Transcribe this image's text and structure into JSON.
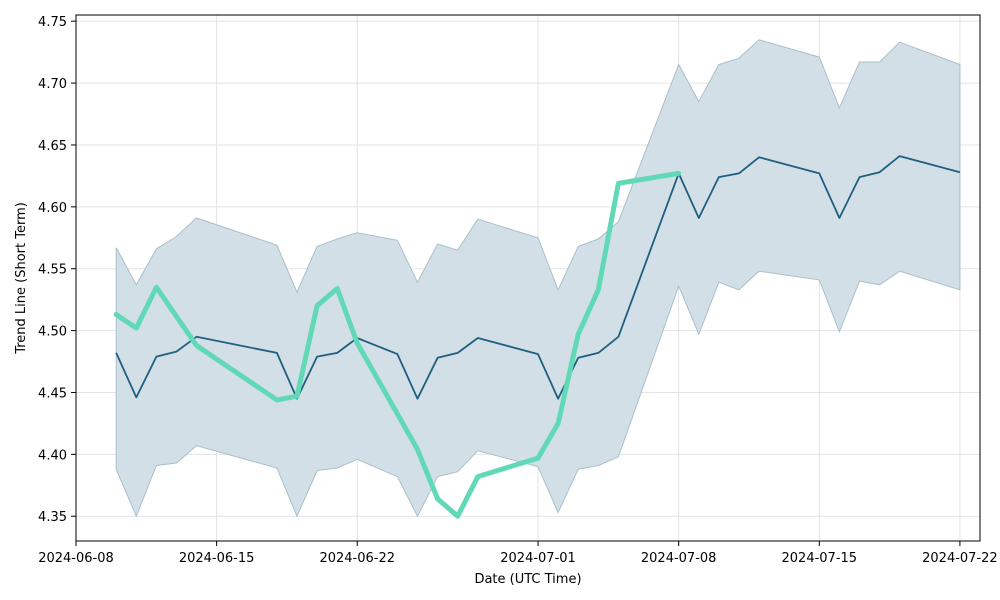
{
  "chart_data": {
    "type": "line",
    "title": "",
    "xlabel": "Date (UTC Time)",
    "ylabel": "Trend Line (Short Term)",
    "ylim": [
      4.33,
      4.755
    ],
    "xlim": [
      "2024-06-08",
      "2024-07-23"
    ],
    "grid": true,
    "x_ticks": [
      "2024-06-08",
      "2024-06-15",
      "2024-06-22",
      "2024-07-01",
      "2024-07-08",
      "2024-07-15",
      "2024-07-22"
    ],
    "y_ticks": [
      "4.35",
      "4.40",
      "4.45",
      "4.50",
      "4.55",
      "4.60",
      "4.65",
      "4.70",
      "4.75"
    ],
    "colors": {
      "trend": "#1f5f80",
      "band": "#d2dfe6",
      "band_edge": "#a9c0cc",
      "actual": "#62d9b6",
      "grid": "#e3e3e3"
    },
    "series": [
      {
        "name": "trend",
        "points": [
          [
            "2024-06-10",
            4.482
          ],
          [
            "2024-06-11",
            4.446
          ],
          [
            "2024-06-12",
            4.479
          ],
          [
            "2024-06-13",
            4.483
          ],
          [
            "2024-06-14",
            4.495
          ],
          [
            "2024-06-18",
            4.482
          ],
          [
            "2024-06-19",
            4.445
          ],
          [
            "2024-06-20",
            4.479
          ],
          [
            "2024-06-21",
            4.482
          ],
          [
            "2024-06-22",
            4.494
          ],
          [
            "2024-06-24",
            4.481
          ],
          [
            "2024-06-25",
            4.445
          ],
          [
            "2024-06-26",
            4.478
          ],
          [
            "2024-06-27",
            4.482
          ],
          [
            "2024-06-28",
            4.494
          ],
          [
            "2024-07-01",
            4.481
          ],
          [
            "2024-07-02",
            4.445
          ],
          [
            "2024-07-03",
            4.478
          ],
          [
            "2024-07-04",
            4.482
          ],
          [
            "2024-07-05",
            4.495
          ],
          [
            "2024-07-08",
            4.627
          ],
          [
            "2024-07-09",
            4.591
          ],
          [
            "2024-07-10",
            4.624
          ],
          [
            "2024-07-11",
            4.627
          ],
          [
            "2024-07-12",
            4.64
          ],
          [
            "2024-07-15",
            4.627
          ],
          [
            "2024-07-16",
            4.591
          ],
          [
            "2024-07-17",
            4.624
          ],
          [
            "2024-07-18",
            4.628
          ],
          [
            "2024-07-19",
            4.641
          ],
          [
            "2024-07-22",
            4.628
          ]
        ]
      },
      {
        "name": "upper",
        "points": [
          [
            "2024-06-10",
            4.567
          ],
          [
            "2024-06-11",
            4.537
          ],
          [
            "2024-06-12",
            4.566
          ],
          [
            "2024-06-13",
            4.576
          ],
          [
            "2024-06-14",
            4.591
          ],
          [
            "2024-06-18",
            4.569
          ],
          [
            "2024-06-19",
            4.531
          ],
          [
            "2024-06-20",
            4.568
          ],
          [
            "2024-06-21",
            4.574
          ],
          [
            "2024-06-22",
            4.579
          ],
          [
            "2024-06-24",
            4.573
          ],
          [
            "2024-06-25",
            4.539
          ],
          [
            "2024-06-26",
            4.57
          ],
          [
            "2024-06-27",
            4.565
          ],
          [
            "2024-06-28",
            4.59
          ],
          [
            "2024-07-01",
            4.575
          ],
          [
            "2024-07-02",
            4.533
          ],
          [
            "2024-07-03",
            4.568
          ],
          [
            "2024-07-04",
            4.574
          ],
          [
            "2024-07-05",
            4.588
          ],
          [
            "2024-07-08",
            4.715
          ],
          [
            "2024-07-09",
            4.685
          ],
          [
            "2024-07-10",
            4.715
          ],
          [
            "2024-07-11",
            4.72
          ],
          [
            "2024-07-12",
            4.735
          ],
          [
            "2024-07-15",
            4.721
          ],
          [
            "2024-07-16",
            4.68
          ],
          [
            "2024-07-17",
            4.717
          ],
          [
            "2024-07-18",
            4.717
          ],
          [
            "2024-07-19",
            4.733
          ],
          [
            "2024-07-22",
            4.715
          ]
        ]
      },
      {
        "name": "lower",
        "points": [
          [
            "2024-06-10",
            4.388
          ],
          [
            "2024-06-11",
            4.35
          ],
          [
            "2024-06-12",
            4.391
          ],
          [
            "2024-06-13",
            4.393
          ],
          [
            "2024-06-14",
            4.407
          ],
          [
            "2024-06-18",
            4.389
          ],
          [
            "2024-06-19",
            4.35
          ],
          [
            "2024-06-20",
            4.387
          ],
          [
            "2024-06-21",
            4.389
          ],
          [
            "2024-06-22",
            4.396
          ],
          [
            "2024-06-24",
            4.382
          ],
          [
            "2024-06-25",
            4.35
          ],
          [
            "2024-06-26",
            4.382
          ],
          [
            "2024-06-27",
            4.386
          ],
          [
            "2024-06-28",
            4.403
          ],
          [
            "2024-07-01",
            4.39
          ],
          [
            "2024-07-02",
            4.353
          ],
          [
            "2024-07-03",
            4.388
          ],
          [
            "2024-07-04",
            4.391
          ],
          [
            "2024-07-05",
            4.398
          ],
          [
            "2024-07-08",
            4.536
          ],
          [
            "2024-07-09",
            4.497
          ],
          [
            "2024-07-10",
            4.539
          ],
          [
            "2024-07-11",
            4.533
          ],
          [
            "2024-07-12",
            4.548
          ],
          [
            "2024-07-15",
            4.541
          ],
          [
            "2024-07-16",
            4.499
          ],
          [
            "2024-07-17",
            4.54
          ],
          [
            "2024-07-18",
            4.537
          ],
          [
            "2024-07-19",
            4.548
          ],
          [
            "2024-07-22",
            4.533
          ]
        ]
      },
      {
        "name": "actual",
        "points": [
          [
            "2024-06-10",
            4.513
          ],
          [
            "2024-06-11",
            4.502
          ],
          [
            "2024-06-12",
            4.535
          ],
          [
            "2024-06-14",
            4.488
          ],
          [
            "2024-06-18",
            4.444
          ],
          [
            "2024-06-19",
            4.447
          ],
          [
            "2024-06-20",
            4.52
          ],
          [
            "2024-06-21",
            4.534
          ],
          [
            "2024-06-22",
            4.49
          ],
          [
            "2024-06-25",
            4.404
          ],
          [
            "2024-06-26",
            4.364
          ],
          [
            "2024-06-27",
            4.35
          ],
          [
            "2024-06-28",
            4.382
          ],
          [
            "2024-07-01",
            4.397
          ],
          [
            "2024-07-02",
            4.425
          ],
          [
            "2024-07-03",
            4.497
          ],
          [
            "2024-07-04",
            4.533
          ],
          [
            "2024-07-05",
            4.619
          ],
          [
            "2024-07-08",
            4.627
          ]
        ]
      }
    ]
  }
}
